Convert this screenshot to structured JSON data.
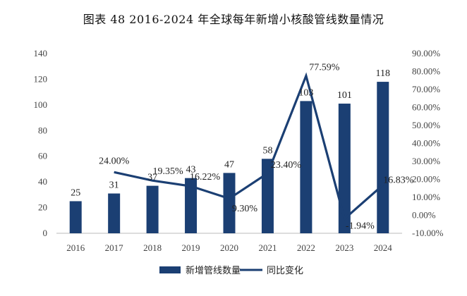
{
  "chart_data": {
    "title": "图表 48 2016-2024 年全球每年新增小核酸管线数量情况",
    "type": "bar",
    "categories": [
      "2016",
      "2017",
      "2018",
      "2019",
      "2020",
      "2021",
      "2022",
      "2023",
      "2024"
    ],
    "series": [
      {
        "name": "新增管线数量",
        "type": "bar",
        "axis": "left",
        "values": [
          25,
          31,
          37,
          43,
          47,
          58,
          103,
          101,
          118
        ],
        "labels": [
          "25",
          "31",
          "37",
          "43",
          "47",
          "58",
          "103",
          "101",
          "118"
        ]
      },
      {
        "name": "同比变化",
        "type": "line",
        "axis": "right",
        "values": [
          null,
          24.0,
          19.35,
          16.22,
          9.3,
          23.4,
          77.59,
          -1.94,
          16.83
        ],
        "labels": [
          "",
          "24.00%",
          "19.35%",
          "16.22%",
          "9.30%",
          "23.40%",
          "77.59%",
          "-1.94%",
          "16.83%"
        ]
      }
    ],
    "y_left": {
      "ylim": [
        0,
        140
      ],
      "ticks": [
        "0",
        "20",
        "40",
        "60",
        "80",
        "100",
        "120",
        "140"
      ]
    },
    "y_right": {
      "ylim": [
        -10,
        90
      ],
      "ticks": [
        "-10.00%",
        "0.00%",
        "10.00%",
        "20.00%",
        "30.00%",
        "40.00%",
        "50.00%",
        "60.00%",
        "70.00%",
        "80.00%",
        "90.00%"
      ]
    },
    "legend_position": "bottom-center",
    "grid": false,
    "colors": {
      "bar": "#1b3f73",
      "line": "#1b3f73"
    }
  }
}
